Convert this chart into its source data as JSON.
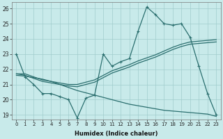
{
  "xlabel": "Humidex (Indice chaleur)",
  "background_color": "#c8eaea",
  "grid_color": "#a0cccc",
  "line_color": "#2a6e6e",
  "xlim": [
    -0.5,
    23.5
  ],
  "ylim": [
    18.7,
    26.4
  ],
  "yticks": [
    19,
    20,
    21,
    22,
    23,
    24,
    25,
    26
  ],
  "xticks": [
    0,
    1,
    2,
    3,
    4,
    5,
    6,
    7,
    8,
    9,
    10,
    11,
    12,
    13,
    14,
    15,
    16,
    17,
    18,
    19,
    20,
    21,
    22,
    23
  ],
  "curve1_x": [
    0,
    1,
    2,
    3,
    4,
    5,
    6,
    7,
    8,
    9,
    10,
    11,
    12,
    13,
    14,
    15,
    16,
    17,
    18,
    19,
    20,
    21,
    22,
    23
  ],
  "curve1_y": [
    23.0,
    21.5,
    21.0,
    20.4,
    20.4,
    20.2,
    20.0,
    18.8,
    20.1,
    20.3,
    23.0,
    22.2,
    22.5,
    22.7,
    24.5,
    26.1,
    25.6,
    25.0,
    24.9,
    25.0,
    24.1,
    22.2,
    20.4,
    19.0
  ],
  "curve2_x": [
    0,
    1,
    2,
    3,
    4,
    5,
    6,
    7,
    8,
    9,
    10,
    11,
    12,
    13,
    14,
    15,
    16,
    17,
    18,
    19,
    20,
    21,
    22,
    23
  ],
  "curve2_y": [
    21.7,
    21.7,
    21.5,
    21.3,
    21.2,
    21.1,
    21.0,
    21.0,
    21.15,
    21.3,
    21.6,
    21.9,
    22.1,
    22.3,
    22.55,
    22.75,
    22.95,
    23.2,
    23.45,
    23.65,
    23.8,
    23.85,
    23.9,
    23.95
  ],
  "curve3_x": [
    0,
    1,
    2,
    3,
    4,
    5,
    6,
    7,
    8,
    9,
    10,
    11,
    12,
    13,
    14,
    15,
    16,
    17,
    18,
    19,
    20,
    21,
    22,
    23
  ],
  "curve3_y": [
    21.7,
    21.6,
    21.4,
    21.2,
    21.1,
    21.0,
    20.9,
    20.85,
    21.0,
    21.15,
    21.45,
    21.75,
    21.95,
    22.15,
    22.4,
    22.6,
    22.8,
    23.05,
    23.3,
    23.5,
    23.65,
    23.7,
    23.75,
    23.8
  ],
  "curve4_x": [
    0,
    1,
    2,
    3,
    4,
    5,
    6,
    7,
    8,
    9,
    10,
    11,
    12,
    13,
    14,
    15,
    16,
    17,
    18,
    19,
    20,
    21,
    22,
    23
  ],
  "curve4_y": [
    21.6,
    21.55,
    21.45,
    21.35,
    21.2,
    21.0,
    20.8,
    20.6,
    20.45,
    20.3,
    20.15,
    20.0,
    19.85,
    19.7,
    19.6,
    19.5,
    19.4,
    19.3,
    19.25,
    19.2,
    19.15,
    19.1,
    19.05,
    18.9
  ]
}
